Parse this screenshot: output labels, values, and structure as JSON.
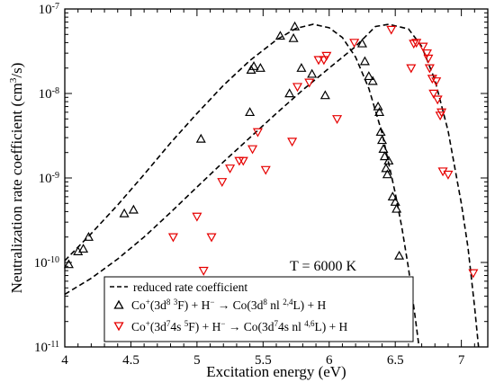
{
  "chart_data": {
    "type": "scatter",
    "xlabel": "Excitation energy (eV)",
    "ylabel_main": "Neutralization rate coefficient (cm",
    "ylabel_sup": "3",
    "ylabel_tail": "/s)",
    "log_y": true,
    "xlim": [
      4,
      7.2
    ],
    "ylim": [
      1e-11,
      1e-07
    ],
    "x_ticks": [
      4,
      4.5,
      5,
      5.5,
      6,
      6.5,
      7
    ],
    "x_tick_labels": [
      "4",
      "4.5",
      "5",
      "5.5",
      "6",
      "6.5",
      "7"
    ],
    "y_ticks": [
      {
        "value": 1e-11,
        "mant": "10",
        "exp": "-11"
      },
      {
        "value": 1e-10,
        "mant": "10",
        "exp": "-10"
      },
      {
        "value": 1e-09,
        "mant": "10",
        "exp": "-9"
      },
      {
        "value": 1e-08,
        "mant": "10",
        "exp": "-8"
      },
      {
        "value": 1e-07,
        "mant": "10",
        "exp": "-7"
      }
    ],
    "annotation": "T = 6000 K",
    "grid": false,
    "legend_position": "bottom-right",
    "legend": {
      "curve": "reduced rate coefficient",
      "black": {
        "parts": [
          {
            "t": "Co"
          },
          {
            "t": "+",
            "sup": true
          },
          {
            "t": "(3d"
          },
          {
            "t": "8",
            "sup": true
          },
          {
            "t": " "
          },
          {
            "t": "3",
            "sup": true
          },
          {
            "t": "F) + H"
          },
          {
            "t": "−",
            "sup": true
          },
          {
            "t": " → Co(3d"
          },
          {
            "t": "8",
            "sup": true
          },
          {
            "t": " nl "
          },
          {
            "t": "2,4",
            "sup": true
          },
          {
            "t": "L) + H"
          }
        ]
      },
      "red": {
        "parts": [
          {
            "t": "Co"
          },
          {
            "t": "+",
            "sup": true
          },
          {
            "t": "(3d"
          },
          {
            "t": "7",
            "sup": true
          },
          {
            "t": "4s "
          },
          {
            "t": "5",
            "sup": true
          },
          {
            "t": "F) + H"
          },
          {
            "t": "−",
            "sup": true
          },
          {
            "t": " → Co(3d"
          },
          {
            "t": "7",
            "sup": true
          },
          {
            "t": "4s nl "
          },
          {
            "t": "4,6",
            "sup": true
          },
          {
            "t": "L) + H"
          }
        ]
      }
    },
    "colors": {
      "black_series": "#000000",
      "red_series": "#e60000",
      "curve": "#000000"
    },
    "series": [
      {
        "marker": "triangle-up",
        "color": "#000000",
        "points": [
          [
            4.03,
            9.5e-11
          ],
          [
            4.1,
            1.35e-10
          ],
          [
            4.14,
            1.45e-10
          ],
          [
            4.18,
            2e-10
          ],
          [
            4.45,
            3.8e-10
          ],
          [
            4.52,
            4.2e-10
          ],
          [
            5.03,
            2.9e-09
          ],
          [
            5.41,
            1.9e-08
          ],
          [
            5.43,
            2.1e-08
          ],
          [
            5.48,
            2e-08
          ],
          [
            5.4,
            6e-09
          ],
          [
            5.63,
            4.8e-08
          ],
          [
            5.73,
            4.5e-08
          ],
          [
            5.74,
            6.2e-08
          ],
          [
            5.7,
            1e-08
          ],
          [
            5.79,
            2e-08
          ],
          [
            5.87,
            1.7e-08
          ],
          [
            5.97,
            9.5e-09
          ],
          [
            6.25,
            3.9e-08
          ],
          [
            6.27,
            2.4e-08
          ],
          [
            6.3,
            1.6e-08
          ],
          [
            6.33,
            1.4e-08
          ],
          [
            6.37,
            7e-09
          ],
          [
            6.38,
            6e-09
          ],
          [
            6.39,
            3.5e-09
          ],
          [
            6.4,
            2.8e-09
          ],
          [
            6.41,
            2.2e-09
          ],
          [
            6.42,
            1.8e-09
          ],
          [
            6.43,
            1.3e-09
          ],
          [
            6.44,
            1.1e-09
          ],
          [
            6.45,
            1.6e-09
          ],
          [
            6.48,
            6e-10
          ],
          [
            6.5,
            5.2e-10
          ],
          [
            6.51,
            4.3e-10
          ],
          [
            6.53,
            1.2e-10
          ]
        ]
      },
      {
        "marker": "triangle-down",
        "color": "#e60000",
        "points": [
          [
            4.82,
            2e-10
          ],
          [
            5.0,
            3.5e-10
          ],
          [
            5.05,
            8e-11
          ],
          [
            5.11,
            2e-10
          ],
          [
            5.19,
            9e-10
          ],
          [
            5.25,
            1.3e-09
          ],
          [
            5.32,
            1.6e-09
          ],
          [
            5.35,
            1.6e-09
          ],
          [
            5.42,
            2.2e-09
          ],
          [
            5.46,
            3.5e-09
          ],
          [
            5.52,
            1.25e-09
          ],
          [
            5.72,
            2.7e-09
          ],
          [
            5.76,
            1.2e-08
          ],
          [
            5.85,
            1.35e-08
          ],
          [
            5.92,
            2.5e-08
          ],
          [
            5.96,
            2.5e-08
          ],
          [
            5.98,
            2.8e-08
          ],
          [
            6.06,
            5e-09
          ],
          [
            6.19,
            4e-08
          ],
          [
            6.47,
            5.7e-08
          ],
          [
            6.62,
            2e-08
          ],
          [
            6.64,
            3.9e-08
          ],
          [
            6.66,
            4e-08
          ],
          [
            6.71,
            3.6e-08
          ],
          [
            6.74,
            3e-08
          ],
          [
            6.75,
            2.6e-08
          ],
          [
            6.76,
            2e-08
          ],
          [
            6.78,
            1.5e-08
          ],
          [
            6.79,
            1e-08
          ],
          [
            6.81,
            1.4e-08
          ],
          [
            6.82,
            8.5e-09
          ],
          [
            6.84,
            5.5e-09
          ],
          [
            6.85,
            6e-09
          ],
          [
            6.86,
            1.2e-09
          ],
          [
            6.9,
            1.1e-09
          ],
          [
            7.09,
            7.5e-11
          ]
        ]
      }
    ],
    "curves": [
      {
        "name": "reduced rate coefficient",
        "style": "dashed",
        "points": [
          [
            4.0,
            1.05e-10
          ],
          [
            4.2,
            2.2e-10
          ],
          [
            4.4,
            4.8e-10
          ],
          [
            4.6,
            1.1e-09
          ],
          [
            4.8,
            2.6e-09
          ],
          [
            5.0,
            5.8e-09
          ],
          [
            5.2,
            1.25e-08
          ],
          [
            5.4,
            2.45e-08
          ],
          [
            5.6,
            4.3e-08
          ],
          [
            5.75,
            5.9e-08
          ],
          [
            5.88,
            6.6e-08
          ],
          [
            6.0,
            6e-08
          ],
          [
            6.1,
            4.6e-08
          ],
          [
            6.2,
            2.7e-08
          ],
          [
            6.3,
            1.15e-08
          ],
          [
            6.4,
            3.4e-09
          ],
          [
            6.5,
            6.6e-10
          ],
          [
            6.55,
            2.6e-10
          ],
          [
            6.6,
            8.5e-11
          ],
          [
            6.65,
            2.3e-11
          ],
          [
            6.68,
            1e-11
          ]
        ]
      },
      {
        "name": "reduced rate coefficient",
        "style": "dashed",
        "points": [
          [
            4.0,
            4.2e-11
          ],
          [
            4.2,
            6.5e-11
          ],
          [
            4.4,
            1.1e-10
          ],
          [
            4.6,
            2e-10
          ],
          [
            4.8,
            3.9e-10
          ],
          [
            5.0,
            7.8e-10
          ],
          [
            5.2,
            1.55e-09
          ],
          [
            5.4,
            3e-09
          ],
          [
            5.6,
            5.8e-09
          ],
          [
            5.8,
            1.1e-08
          ],
          [
            6.0,
            2e-08
          ],
          [
            6.2,
            3.6e-08
          ],
          [
            6.35,
            6.2e-08
          ],
          [
            6.45,
            6.6e-08
          ],
          [
            6.6,
            5.8e-08
          ],
          [
            6.7,
            3.6e-08
          ],
          [
            6.8,
            1.45e-08
          ],
          [
            6.9,
            3.6e-09
          ],
          [
            7.0,
            5e-10
          ],
          [
            7.05,
            1.5e-10
          ],
          [
            7.1,
            3e-11
          ],
          [
            7.13,
            1e-11
          ]
        ]
      }
    ]
  }
}
